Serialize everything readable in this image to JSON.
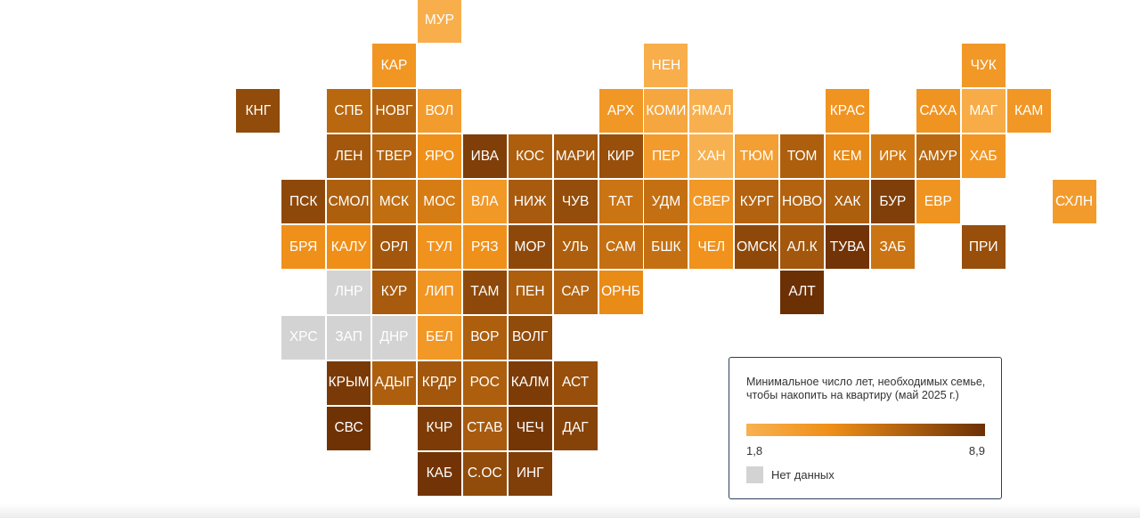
{
  "legend": {
    "title": "Минимальное число лет, необходимых семье, чтобы накопить на квартиру (май 2025 г.)",
    "min_label": "1,8",
    "max_label": "8,9",
    "min_value": 1.8,
    "max_value": 8.9,
    "no_data_label": "Нет данных"
  },
  "colors": {
    "scale_low": "#f8b150",
    "scale_mid": "#ef8f18",
    "scale_high": "#6c3005",
    "no_data": "#d3d3d3",
    "text": "#ffffff"
  },
  "regions": [
    {
      "code": "МУР",
      "col": 6,
      "row": 0,
      "value": 2.0
    },
    {
      "code": "КАР",
      "col": 5,
      "row": 1,
      "value": 3.8
    },
    {
      "code": "НЕН",
      "col": 11,
      "row": 1,
      "value": 2.0
    },
    {
      "code": "ЧУК",
      "col": 18,
      "row": 1,
      "value": 3.6
    },
    {
      "code": "КНГ",
      "col": 2,
      "row": 2,
      "value": 7.6
    },
    {
      "code": "СПБ",
      "col": 4,
      "row": 2,
      "value": 6.2
    },
    {
      "code": "НОВГ",
      "col": 5,
      "row": 2,
      "value": 6.4
    },
    {
      "code": "ВОЛ",
      "col": 6,
      "row": 2,
      "value": 3.3
    },
    {
      "code": "АРХ",
      "col": 10,
      "row": 2,
      "value": 3.7
    },
    {
      "code": "КОМИ",
      "col": 11,
      "row": 2,
      "value": 2.6
    },
    {
      "code": "ЯМАЛ",
      "col": 12,
      "row": 2,
      "value": 1.9
    },
    {
      "code": "КРАС",
      "col": 15,
      "row": 2,
      "value": 3.9
    },
    {
      "code": "САХА",
      "col": 17,
      "row": 2,
      "value": 3.9
    },
    {
      "code": "МАГ",
      "col": 18,
      "row": 2,
      "value": 2.2
    },
    {
      "code": "КАМ",
      "col": 19,
      "row": 2,
      "value": 3.7
    },
    {
      "code": "ЛЕН",
      "col": 4,
      "row": 3,
      "value": 7.0
    },
    {
      "code": "ТВЕР",
      "col": 5,
      "row": 3,
      "value": 6.4
    },
    {
      "code": "ЯРО",
      "col": 6,
      "row": 3,
      "value": 4.2
    },
    {
      "code": "ИВА",
      "col": 7,
      "row": 3,
      "value": 8.2
    },
    {
      "code": "КОС",
      "col": 8,
      "row": 3,
      "value": 6.6
    },
    {
      "code": "МАРИ",
      "col": 9,
      "row": 3,
      "value": 7.0
    },
    {
      "code": "КИР",
      "col": 10,
      "row": 3,
      "value": 7.4
    },
    {
      "code": "ПЕР",
      "col": 11,
      "row": 3,
      "value": 3.4
    },
    {
      "code": "ХАН",
      "col": 12,
      "row": 3,
      "value": 1.8
    },
    {
      "code": "ТЮМ",
      "col": 13,
      "row": 3,
      "value": 3.1
    },
    {
      "code": "ТОМ",
      "col": 14,
      "row": 3,
      "value": 6.6
    },
    {
      "code": "КЕМ",
      "col": 15,
      "row": 3,
      "value": 4.6
    },
    {
      "code": "ИРК",
      "col": 16,
      "row": 3,
      "value": 5.4
    },
    {
      "code": "АМУР",
      "col": 17,
      "row": 3,
      "value": 6.2
    },
    {
      "code": "ХАБ",
      "col": 18,
      "row": 3,
      "value": 3.8
    },
    {
      "code": "ПСК",
      "col": 3,
      "row": 4,
      "value": 7.7
    },
    {
      "code": "СМОЛ",
      "col": 4,
      "row": 4,
      "value": 6.6
    },
    {
      "code": "МСК",
      "col": 5,
      "row": 4,
      "value": 5.9
    },
    {
      "code": "МОС",
      "col": 6,
      "row": 4,
      "value": 5.2
    },
    {
      "code": "ВЛА",
      "col": 7,
      "row": 4,
      "value": 3.6
    },
    {
      "code": "НИЖ",
      "col": 8,
      "row": 4,
      "value": 6.8
    },
    {
      "code": "ЧУВ",
      "col": 9,
      "row": 4,
      "value": 7.5
    },
    {
      "code": "ТАТ",
      "col": 10,
      "row": 4,
      "value": 5.6
    },
    {
      "code": "УДМ",
      "col": 11,
      "row": 4,
      "value": 5.8
    },
    {
      "code": "СВЕР",
      "col": 12,
      "row": 4,
      "value": 3.6
    },
    {
      "code": "КУРГ",
      "col": 13,
      "row": 4,
      "value": 6.4
    },
    {
      "code": "НОВО",
      "col": 14,
      "row": 4,
      "value": 6.4
    },
    {
      "code": "ХАК",
      "col": 15,
      "row": 4,
      "value": 6.6
    },
    {
      "code": "БУР",
      "col": 16,
      "row": 4,
      "value": 8.2
    },
    {
      "code": "ЕВР",
      "col": 17,
      "row": 4,
      "value": 3.9
    },
    {
      "code": "СХЛН",
      "col": 20,
      "row": 4,
      "value": 3.4
    },
    {
      "code": "БРЯ",
      "col": 3,
      "row": 5,
      "value": 4.2
    },
    {
      "code": "КАЛУ",
      "col": 4,
      "row": 5,
      "value": 4.3
    },
    {
      "code": "ОРЛ",
      "col": 5,
      "row": 5,
      "value": 7.0
    },
    {
      "code": "ТУЛ",
      "col": 6,
      "row": 5,
      "value": 4.0
    },
    {
      "code": "РЯЗ",
      "col": 7,
      "row": 5,
      "value": 4.2
    },
    {
      "code": "МОР",
      "col": 8,
      "row": 5,
      "value": 7.7
    },
    {
      "code": "УЛЬ",
      "col": 9,
      "row": 5,
      "value": 6.6
    },
    {
      "code": "САМ",
      "col": 10,
      "row": 5,
      "value": 5.8
    },
    {
      "code": "БШК",
      "col": 11,
      "row": 5,
      "value": 5.8
    },
    {
      "code": "ЧЕЛ",
      "col": 12,
      "row": 5,
      "value": 4.1
    },
    {
      "code": "ОМСК",
      "col": 13,
      "row": 5,
      "value": 7.7
    },
    {
      "code": "АЛ.К",
      "col": 14,
      "row": 5,
      "value": 7.0
    },
    {
      "code": "ТУВА",
      "col": 15,
      "row": 5,
      "value": 8.7
    },
    {
      "code": "ЗАБ",
      "col": 16,
      "row": 5,
      "value": 5.6
    },
    {
      "code": "ПРИ",
      "col": 18,
      "row": 5,
      "value": 7.4
    },
    {
      "code": "ЛНР",
      "col": 4,
      "row": 6,
      "value": null
    },
    {
      "code": "КУР",
      "col": 5,
      "row": 6,
      "value": 6.8
    },
    {
      "code": "ЛИП",
      "col": 6,
      "row": 6,
      "value": 3.8
    },
    {
      "code": "ТАМ",
      "col": 7,
      "row": 6,
      "value": 7.7
    },
    {
      "code": "ПЕН",
      "col": 8,
      "row": 6,
      "value": 6.6
    },
    {
      "code": "САР",
      "col": 9,
      "row": 6,
      "value": 6.4
    },
    {
      "code": "ОРНБ",
      "col": 10,
      "row": 6,
      "value": 4.5
    },
    {
      "code": "АЛТ",
      "col": 14,
      "row": 6,
      "value": 8.9
    },
    {
      "code": "ХРС",
      "col": 3,
      "row": 7,
      "value": null
    },
    {
      "code": "ЗАП",
      "col": 4,
      "row": 7,
      "value": null
    },
    {
      "code": "ДНР",
      "col": 5,
      "row": 7,
      "value": null
    },
    {
      "code": "БЕЛ",
      "col": 6,
      "row": 7,
      "value": 3.6
    },
    {
      "code": "ВОР",
      "col": 7,
      "row": 7,
      "value": 6.6
    },
    {
      "code": "ВОЛГ",
      "col": 8,
      "row": 7,
      "value": 7.6
    },
    {
      "code": "КРЫМ",
      "col": 4,
      "row": 8,
      "value": 8.4
    },
    {
      "code": "АДЫГ",
      "col": 5,
      "row": 8,
      "value": 6.6
    },
    {
      "code": "КРДР",
      "col": 6,
      "row": 8,
      "value": 7.0
    },
    {
      "code": "РОС",
      "col": 7,
      "row": 8,
      "value": 6.6
    },
    {
      "code": "КАЛМ",
      "col": 8,
      "row": 8,
      "value": 8.3
    },
    {
      "code": "АСТ",
      "col": 9,
      "row": 8,
      "value": 7.4
    },
    {
      "code": "СВС",
      "col": 4,
      "row": 9,
      "value": 8.8
    },
    {
      "code": "КЧР",
      "col": 6,
      "row": 9,
      "value": 8.3
    },
    {
      "code": "СТАВ",
      "col": 7,
      "row": 9,
      "value": 6.8
    },
    {
      "code": "ЧЕЧ",
      "col": 8,
      "row": 9,
      "value": 8.6
    },
    {
      "code": "ДАГ",
      "col": 9,
      "row": 9,
      "value": 8.0
    },
    {
      "code": "КАБ",
      "col": 6,
      "row": 10,
      "value": 8.7
    },
    {
      "code": "С.ОС",
      "col": 7,
      "row": 10,
      "value": 7.6
    },
    {
      "code": "ИНГ",
      "col": 8,
      "row": 10,
      "value": 8.2
    }
  ]
}
